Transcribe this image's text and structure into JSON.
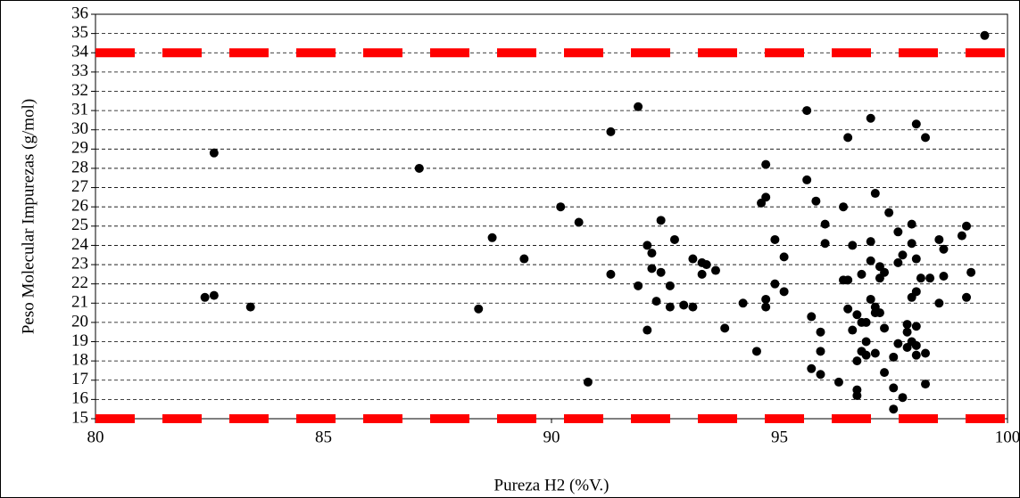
{
  "chart_data": {
    "type": "scatter",
    "xlabel": "Pureza H2 (%V.)",
    "ylabel": "Peso Molecular Impurezas (g/mol)",
    "xlim": [
      80,
      100
    ],
    "xticks": [
      80,
      85,
      90,
      95,
      100
    ],
    "ylim": [
      15,
      36
    ],
    "yticks": [
      15,
      16,
      17,
      18,
      19,
      20,
      21,
      22,
      23,
      24,
      25,
      26,
      27,
      28,
      29,
      30,
      31,
      32,
      33,
      34,
      35,
      36
    ],
    "grid": true,
    "color": "#000000",
    "hlines": [
      {
        "value": 34,
        "color": "#ff0000"
      },
      {
        "value": 15,
        "color": "#ff0000"
      }
    ],
    "x": [
      82.4,
      82.6,
      82.6,
      83.4,
      87.1,
      88.4,
      88.7,
      89.4,
      90.2,
      90.6,
      90.8,
      91.3,
      91.3,
      91.9,
      91.9,
      92.1,
      92.1,
      92.2,
      92.2,
      92.3,
      92.4,
      92.4,
      92.6,
      92.6,
      92.7,
      92.9,
      93.1,
      93.1,
      93.3,
      93.3,
      93.4,
      93.6,
      93.8,
      94.2,
      94.5,
      94.6,
      94.7,
      94.7,
      94.7,
      94.7,
      94.9,
      94.9,
      95.1,
      95.1,
      95.6,
      95.6,
      95.7,
      95.7,
      95.8,
      95.9,
      95.9,
      95.9,
      96.0,
      96.0,
      96.3,
      96.4,
      96.4,
      96.5,
      96.5,
      96.5,
      96.6,
      96.6,
      96.7,
      96.7,
      96.7,
      96.7,
      96.8,
      96.8,
      96.8,
      96.9,
      96.9,
      96.9,
      97.0,
      97.0,
      97.0,
      97.0,
      97.1,
      97.1,
      97.1,
      97.1,
      97.2,
      97.2,
      97.2,
      97.3,
      97.3,
      97.3,
      97.4,
      97.5,
      97.5,
      97.5,
      97.6,
      97.6,
      97.6,
      97.7,
      97.7,
      97.8,
      97.8,
      97.8,
      97.9,
      97.9,
      97.9,
      97.9,
      98.0,
      98.0,
      98.0,
      98.0,
      98.0,
      98.0,
      98.1,
      98.2,
      98.2,
      98.2,
      98.3,
      98.5,
      98.5,
      98.6,
      98.6,
      99.0,
      99.1,
      99.1,
      99.2,
      99.5
    ],
    "values": [
      21.3,
      21.4,
      28.8,
      20.8,
      28.0,
      20.7,
      24.4,
      23.3,
      26.0,
      25.2,
      16.9,
      29.9,
      22.5,
      31.2,
      21.9,
      24.0,
      19.6,
      23.6,
      22.8,
      21.1,
      25.3,
      22.6,
      21.9,
      20.8,
      24.3,
      20.9,
      23.3,
      20.8,
      23.1,
      22.5,
      23.0,
      22.7,
      19.7,
      21.0,
      18.5,
      26.2,
      28.2,
      26.5,
      21.2,
      20.8,
      24.3,
      22.0,
      23.4,
      21.6,
      31.0,
      27.4,
      20.3,
      17.6,
      26.3,
      19.5,
      18.5,
      17.3,
      25.1,
      24.1,
      16.9,
      26.0,
      22.2,
      22.2,
      29.6,
      20.7,
      24.0,
      19.6,
      20.4,
      18.0,
      16.5,
      16.2,
      22.5,
      20.0,
      18.5,
      20.0,
      19.0,
      18.3,
      30.6,
      24.2,
      23.2,
      21.2,
      26.7,
      20.8,
      20.5,
      18.4,
      22.9,
      22.3,
      20.5,
      22.6,
      19.7,
      17.4,
      25.7,
      18.2,
      16.6,
      15.5,
      24.7,
      23.1,
      18.9,
      23.5,
      16.1,
      19.9,
      19.5,
      18.7,
      25.1,
      24.1,
      21.3,
      19.0,
      30.3,
      23.3,
      21.6,
      19.8,
      18.3,
      18.8,
      22.3,
      29.6,
      18.4,
      16.8,
      22.3,
      24.3,
      21.0,
      23.8,
      22.4,
      24.5,
      25.0,
      21.3,
      22.6,
      34.9
    ]
  }
}
